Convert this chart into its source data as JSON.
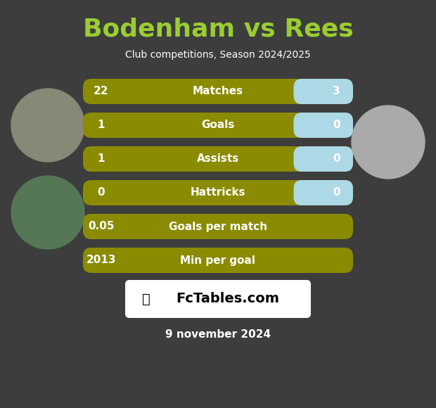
{
  "title": "Bodenham vs Rees",
  "subtitle": "Club competitions, Season 2024/2025",
  "date_text": "9 november 2024",
  "background_color": "#3d3d3d",
  "title_color": "#9acd32",
  "subtitle_color": "#ffffff",
  "date_color": "#ffffff",
  "rows": [
    {
      "label": "Matches",
      "left_val": "22",
      "right_val": "3",
      "has_right_bar": true
    },
    {
      "label": "Goals",
      "left_val": "1",
      "right_val": "0",
      "has_right_bar": true
    },
    {
      "label": "Assists",
      "left_val": "1",
      "right_val": "0",
      "has_right_bar": true
    },
    {
      "label": "Hattricks",
      "left_val": "0",
      "right_val": "0",
      "has_right_bar": true
    },
    {
      "label": "Goals per match",
      "left_val": "0.05",
      "right_val": null,
      "has_right_bar": false
    },
    {
      "label": "Min per goal",
      "left_val": "2013",
      "right_val": null,
      "has_right_bar": false
    }
  ],
  "bar_left_color": "#8B8B00",
  "bar_right_color": "#ADD8E6",
  "bar_text_color": "#ffffff",
  "logo_box_color": "#ffffff",
  "circle_left_top_color": "#888877",
  "circle_right_top_color": "#aaaaaa",
  "circle_left_bot_color": "#557755"
}
